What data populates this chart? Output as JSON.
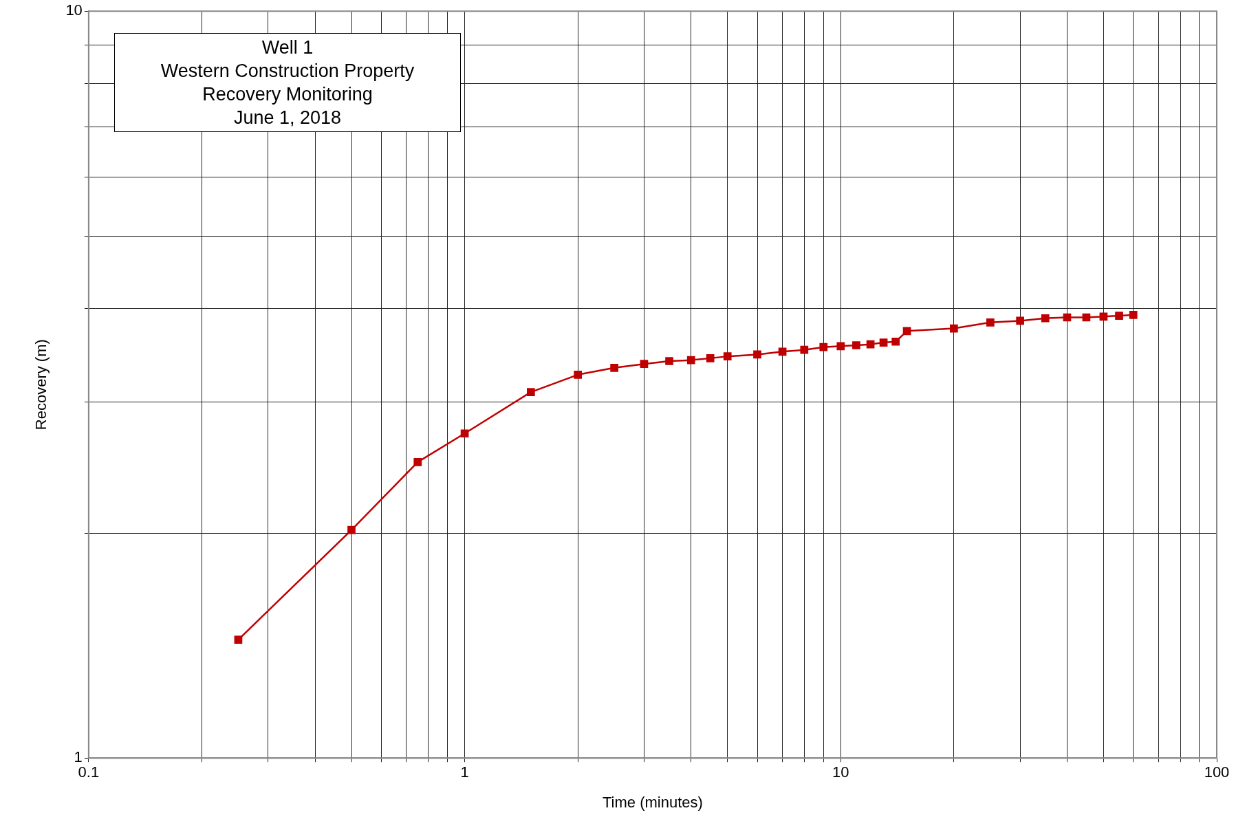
{
  "chart_data": {
    "type": "line",
    "xlabel": "Time (minutes)",
    "ylabel": "Recovery (m)",
    "annotations": [
      "Well 1",
      "Western Construction Property",
      "Recovery Monitoring",
      "June 1, 2018"
    ],
    "x": [
      0.25,
      0.5,
      0.75,
      1,
      1.5,
      2,
      2.5,
      3,
      3.5,
      4,
      4.5,
      5,
      6,
      7,
      8,
      9,
      10,
      11,
      12,
      13,
      14,
      15,
      20,
      25,
      30,
      35,
      40,
      45,
      50,
      55,
      60
    ],
    "series": [
      {
        "color": "#c00000",
        "values": [
          1.44,
          2.02,
          2.49,
          2.72,
          3.09,
          3.26,
          3.33,
          3.37,
          3.4,
          3.41,
          3.43,
          3.45,
          3.47,
          3.5,
          3.52,
          3.55,
          3.56,
          3.57,
          3.58,
          3.6,
          3.61,
          3.73,
          3.76,
          3.83,
          3.85,
          3.88,
          3.89,
          3.89,
          3.9,
          3.91,
          3.92
        ]
      }
    ],
    "log": "xy",
    "xlim": [
      0.1,
      100
    ],
    "ylim": [
      1,
      10
    ],
    "xticks": [
      0.1,
      {
        "value": 0.2,
        "label": null
      },
      {
        "value": 0.3,
        "label": null
      },
      {
        "value": 0.4,
        "label": null
      },
      {
        "value": 0.5,
        "label": null
      },
      {
        "value": 0.6,
        "label": null
      },
      {
        "value": 0.7,
        "label": null
      },
      {
        "value": 0.8,
        "label": null
      },
      {
        "value": 0.9,
        "label": null
      },
      1,
      {
        "value": 2,
        "label": null
      },
      {
        "value": 3,
        "label": null
      },
      {
        "value": 4,
        "label": null
      },
      {
        "value": 5,
        "label": null
      },
      {
        "value": 6,
        "label": null
      },
      {
        "value": 7,
        "label": null
      },
      {
        "value": 8,
        "label": null
      },
      {
        "value": 9,
        "label": null
      },
      10,
      {
        "value": 20,
        "label": null
      },
      {
        "value": 30,
        "label": null
      },
      {
        "value": 40,
        "label": null
      },
      {
        "value": 50,
        "label": null
      },
      {
        "value": 60,
        "label": null
      },
      {
        "value": 70,
        "label": null
      },
      {
        "value": 80,
        "label": null
      },
      {
        "value": 90,
        "label": null
      },
      100
    ],
    "yticks": [
      1,
      {
        "value": 2,
        "label": null
      },
      {
        "value": 3,
        "label": null
      },
      {
        "value": 4,
        "label": null
      },
      {
        "value": 5,
        "label": null
      },
      {
        "value": 6,
        "label": null
      },
      {
        "value": 7,
        "label": null
      },
      {
        "value": 8,
        "label": null
      },
      {
        "value": 9,
        "label": null
      },
      10
    ],
    "grid": true,
    "legend": false,
    "marker": "square",
    "line_style": "solid"
  }
}
